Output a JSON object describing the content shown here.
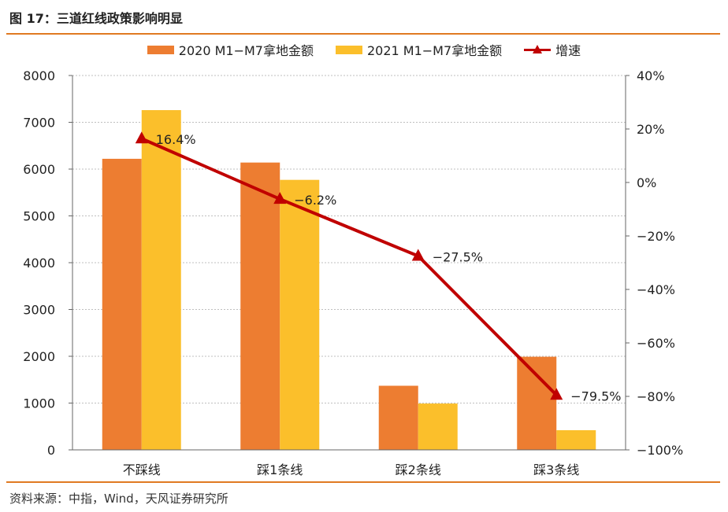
{
  "header": {
    "title": "图 17：三道红线政策影响明显"
  },
  "footer": {
    "source": "资料来源：中指，Wind，天风证券研究所"
  },
  "colors": {
    "accent": "#e07a22",
    "series_2020": "#ed7d31",
    "series_2021": "#fbbf2b",
    "growth": "#c00000"
  },
  "chart_data": {
    "type": "bar",
    "categories": [
      "不踩线",
      "踩1条线",
      "踩2条线",
      "踩3条线"
    ],
    "series": [
      {
        "name": "2020 M1−M7拿地金额",
        "type": "bar",
        "axis": "left",
        "values": [
          6220,
          6140,
          1370,
          1990
        ]
      },
      {
        "name": "2021 M1−M7拿地金额",
        "type": "bar",
        "axis": "left",
        "values": [
          7260,
          5770,
          990,
          420
        ]
      },
      {
        "name": "增速",
        "type": "line",
        "axis": "right",
        "values": [
          16.4,
          -6.2,
          -27.5,
          -79.5
        ],
        "labels": [
          "16.4%",
          "−6.2%",
          "−27.5%",
          "−79.5%"
        ]
      }
    ],
    "ylim_left": [
      0,
      8000
    ],
    "yticks_left": [
      "0",
      "1000",
      "2000",
      "3000",
      "4000",
      "5000",
      "6000",
      "7000",
      "8000"
    ],
    "ylim_right": [
      -100,
      40
    ],
    "yticks_right": [
      "−100%",
      "−80%",
      "−60%",
      "−40%",
      "−20%",
      "0%",
      "20%",
      "40%"
    ],
    "grid": true,
    "legend_position": "top"
  }
}
